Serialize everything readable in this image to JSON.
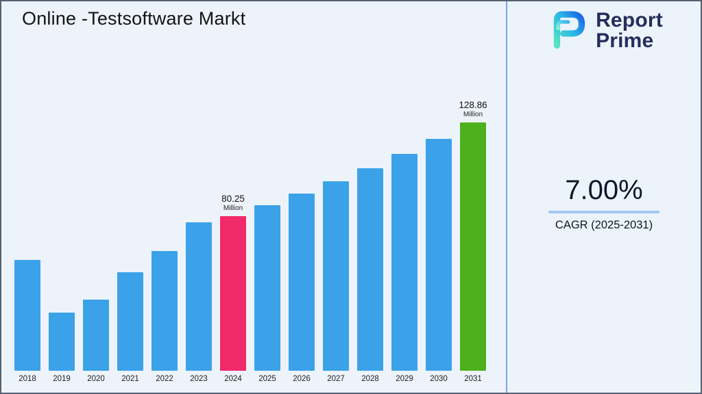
{
  "title": "Online -Testsoftware Markt",
  "logo": {
    "line1": "Report",
    "line2": "Prime"
  },
  "stats": {
    "cagr_value": "7.00%",
    "cagr_label": "CAGR (2025-2031)"
  },
  "chart_data": {
    "type": "bar",
    "title": "Online -Testsoftware Markt",
    "unit": "Million",
    "categories": [
      "2018",
      "2019",
      "2020",
      "2021",
      "2022",
      "2023",
      "2024",
      "2025",
      "2026",
      "2027",
      "2028",
      "2029",
      "2030",
      "2031"
    ],
    "values": [
      57.4,
      30.2,
      36.9,
      51.2,
      62.0,
      77.2,
      80.25,
      85.87,
      91.88,
      98.31,
      105.19,
      112.55,
      120.43,
      128.86
    ],
    "annotations": {
      "2024": {
        "value": "80.25",
        "unit": "Million"
      },
      "2031": {
        "value": "128.86",
        "unit": "Million"
      }
    },
    "colors": {
      "default": "#3ba2e9",
      "2024": "#f2296b",
      "2031": "#4db01d"
    },
    "ylim": [
      0,
      135
    ],
    "grid": false,
    "legend": false,
    "xlabel": "",
    "ylabel": ""
  }
}
